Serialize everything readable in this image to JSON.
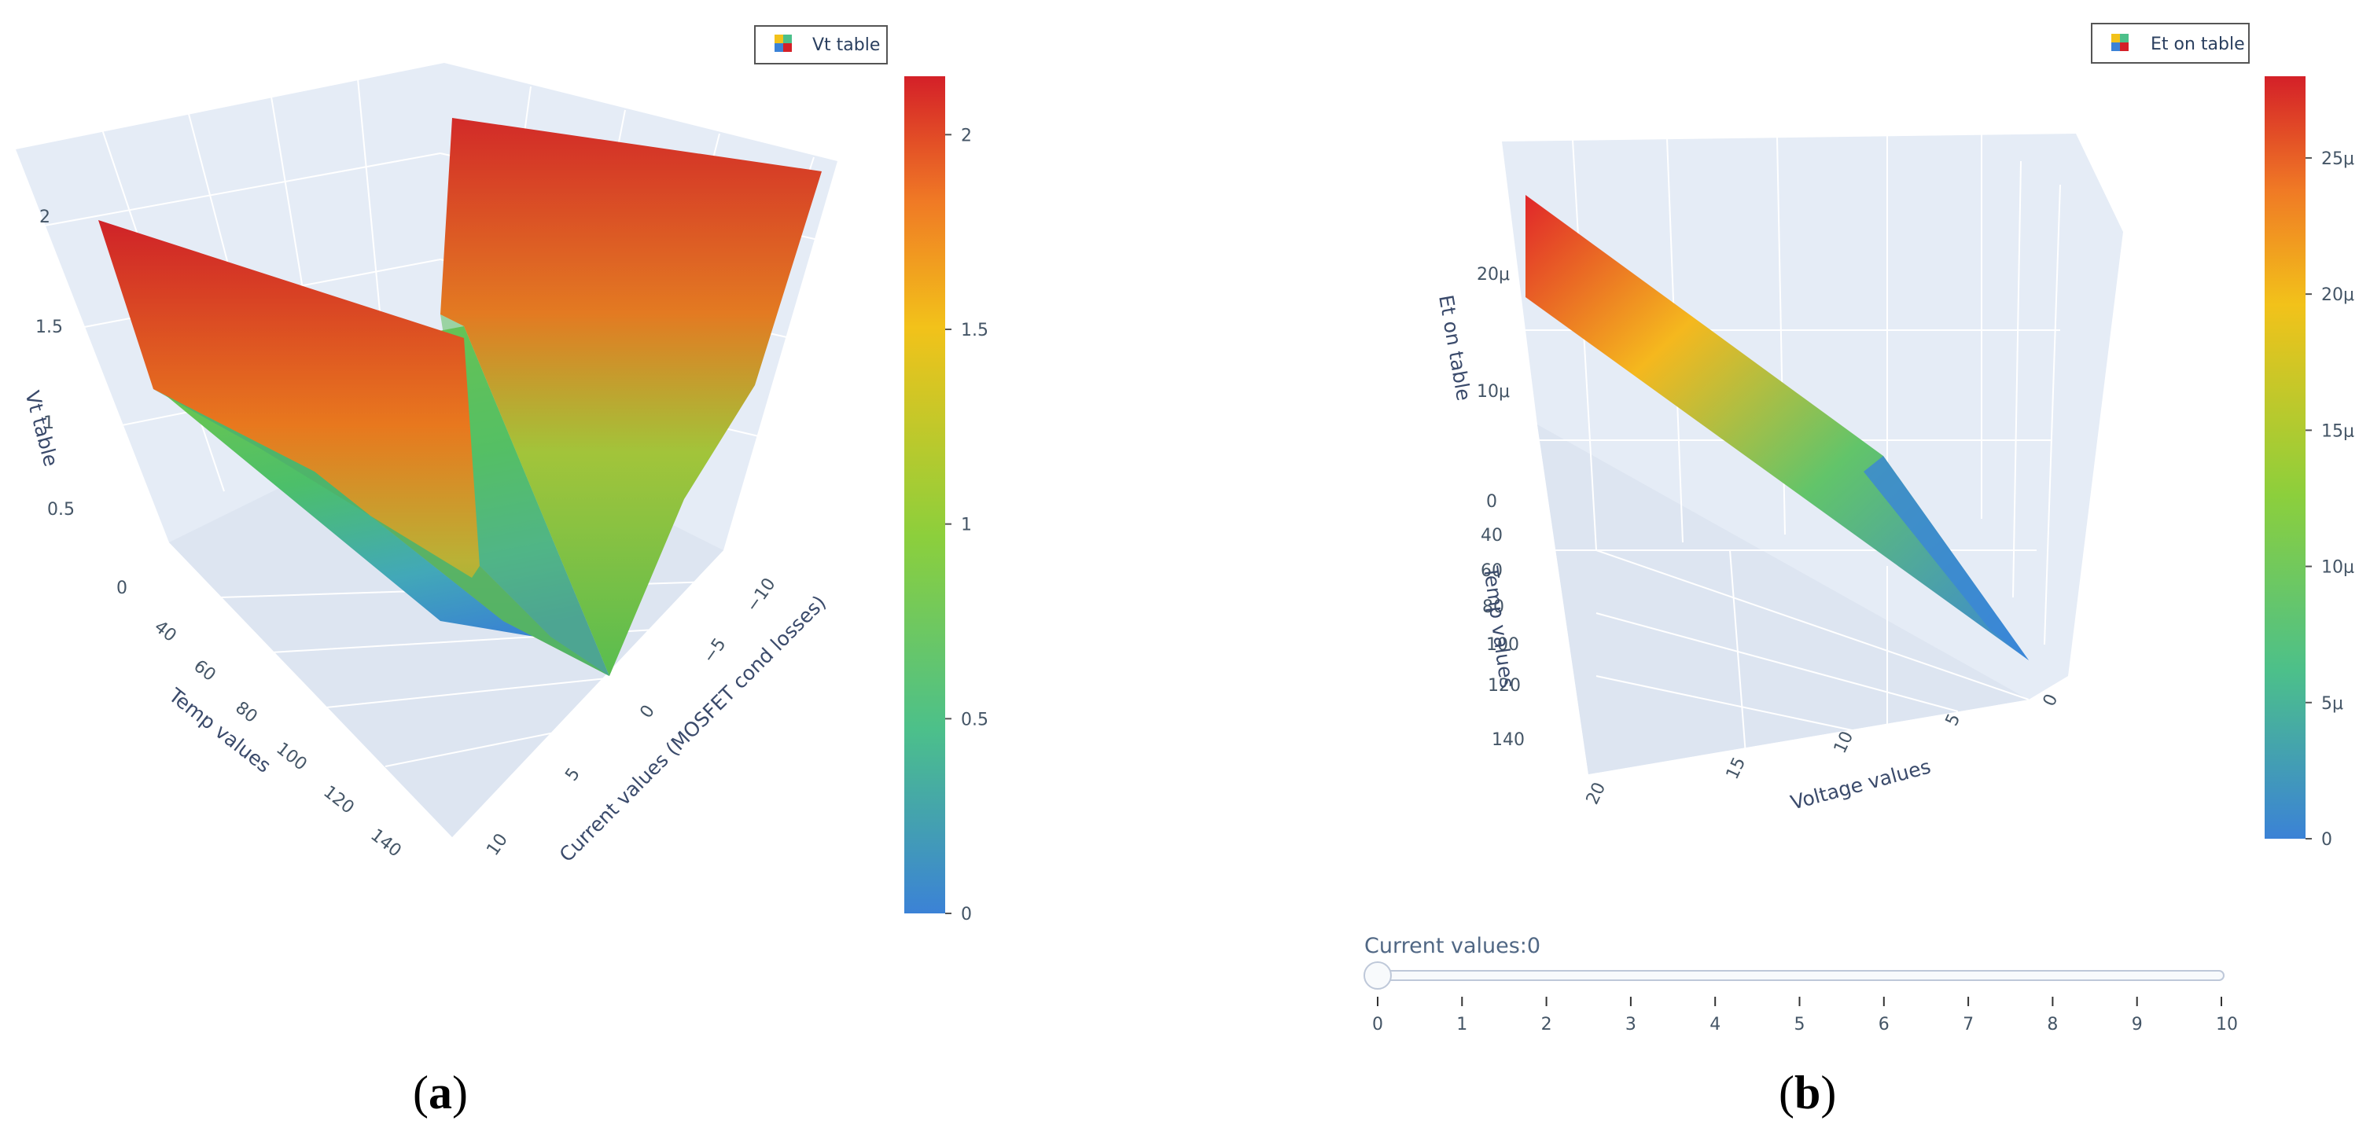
{
  "panels": [
    {
      "label_open": "(",
      "label_letter": "a",
      "label_close": ")"
    },
    {
      "label_open": "(",
      "label_letter": "b",
      "label_close": ")"
    }
  ],
  "colors": {
    "scene_bg": "#e5ecf6",
    "grid": "#ffffff",
    "colorscale": [
      "#3b82d6",
      "#4cc08a",
      "#8ccf3c",
      "#f2c21a",
      "#f07a25",
      "#d42028"
    ]
  },
  "chart_data": [
    {
      "type": "surface",
      "legend": "Vt table",
      "zlabel": "Vt table",
      "xlabel": "Temp values",
      "ylabel": "Current values (MOSFET cond losses)",
      "x_ticks": [
        "40",
        "60",
        "80",
        "100",
        "120",
        "140"
      ],
      "y_ticks": [
        "−10",
        "−5",
        "0",
        "5",
        "10"
      ],
      "z_ticks": [
        "0",
        "0.5",
        "1",
        "1.5",
        "2"
      ],
      "colorbar_ticks": [
        "0",
        "0.5",
        "1",
        "1.5",
        "2"
      ],
      "colorbar_range": [
        0,
        2.15
      ],
      "current_values": [
        -10,
        -5,
        0,
        5,
        10
      ],
      "vt_profile_at_current": [
        2.0,
        0.85,
        0.0,
        0.85,
        2.0
      ]
    },
    {
      "type": "surface",
      "legend": "Et on table",
      "zlabel": "Et on table",
      "xlabel": "Temp values",
      "ylabel": "Voltage values",
      "x_ticks": [
        "0",
        "40",
        "60",
        "80",
        "100",
        "120",
        "140"
      ],
      "y_ticks": [
        "20",
        "15",
        "10",
        "5",
        "0"
      ],
      "z_ticks": [
        "0",
        "10μ",
        "20μ"
      ],
      "colorbar_ticks": [
        "0",
        "5μ",
        "10μ",
        "15μ",
        "20μ",
        "25μ"
      ],
      "colorbar_range": [
        0,
        2.8e-05
      ],
      "voltage_values": [
        0,
        5,
        10,
        15,
        20
      ],
      "et_on_at_voltage": [
        0,
        6.8e-06,
        1.35e-05,
        2e-05,
        2.7e-05
      ],
      "slider": {
        "title": "Current values:0",
        "ticks": [
          "0",
          "1",
          "2",
          "3",
          "4",
          "5",
          "6",
          "7",
          "8",
          "9",
          "10"
        ],
        "value": 0
      }
    }
  ]
}
